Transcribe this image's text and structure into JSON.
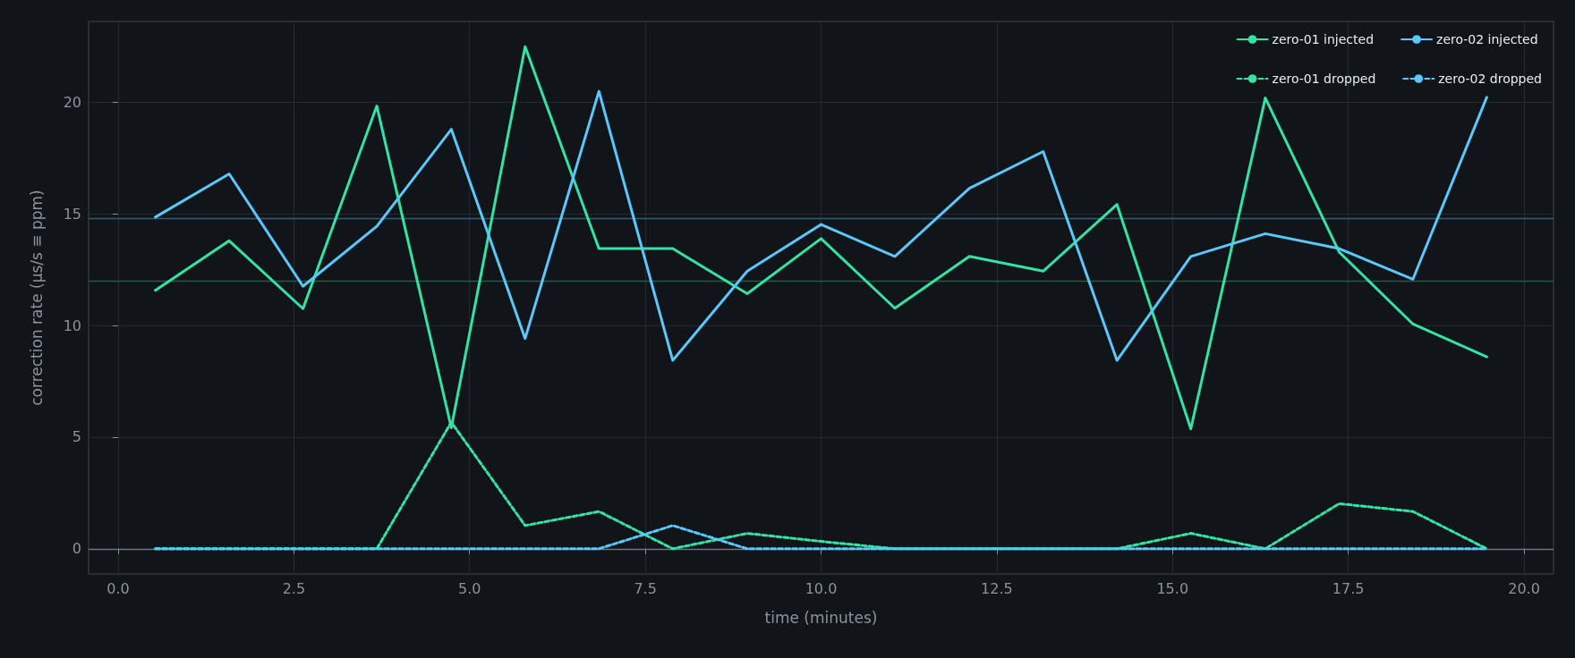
{
  "chart_data": {
    "type": "line",
    "xlabel": "time (minutes)",
    "ylabel": "correction rate (µs/s ≡ ppm)",
    "x": [
      0.53,
      1.58,
      2.63,
      3.68,
      4.74,
      5.79,
      6.84,
      7.89,
      8.95,
      10.0,
      11.05,
      12.11,
      13.16,
      14.21,
      15.26,
      16.32,
      17.37,
      18.42,
      19.47
    ],
    "series": [
      {
        "name": "zero-01 injected",
        "color": "#34e3a4",
        "line_style": "solid",
        "values": [
          11.58,
          13.8,
          10.76,
          19.84,
          5.42,
          22.5,
          13.45,
          13.45,
          11.43,
          13.9,
          10.78,
          13.1,
          12.44,
          15.43,
          5.37,
          20.2,
          13.3,
          10.07,
          8.6
        ]
      },
      {
        "name": "zero-01 dropped",
        "color": "#34e3a4",
        "line_style": "dashed",
        "values": [
          0,
          0,
          0,
          0,
          5.67,
          1.04,
          1.67,
          0,
          0.69,
          0.33,
          0,
          0,
          0,
          0,
          0.69,
          0,
          2.02,
          1.67,
          0
        ]
      },
      {
        "name": "zero-02 injected",
        "color": "#5ac8fa",
        "line_style": "solid",
        "values": [
          14.86,
          16.8,
          11.76,
          14.45,
          18.8,
          9.42,
          20.5,
          8.44,
          12.44,
          14.53,
          13.1,
          16.15,
          17.8,
          8.44,
          13.1,
          14.12,
          13.45,
          12.08,
          20.23
        ]
      },
      {
        "name": "zero-02 dropped",
        "color": "#5ac8fa",
        "line_style": "dashed",
        "values": [
          0,
          0,
          0,
          0,
          0,
          0,
          0,
          1.04,
          0,
          0,
          0,
          0,
          0,
          0,
          0,
          0,
          0,
          0,
          0
        ]
      }
    ],
    "ref_lines": [
      {
        "axis": "y",
        "value": 14.8,
        "color": "#2f5f78"
      },
      {
        "axis": "y",
        "value": 12,
        "color": "#225a4a"
      },
      {
        "axis": "y",
        "value": 0,
        "color": "#6e7681"
      }
    ],
    "xlim": [
      -0.42,
      20.42
    ],
    "ylim": [
      -1.13,
      23.63
    ],
    "xticks": [
      {
        "value": 0,
        "label": "0.0"
      },
      {
        "value": 2.5,
        "label": "2.5"
      },
      {
        "value": 5,
        "label": "5.0"
      },
      {
        "value": 7.5,
        "label": "7.5"
      },
      {
        "value": 10,
        "label": "10.0"
      },
      {
        "value": 12.5,
        "label": "12.5"
      },
      {
        "value": 15,
        "label": "15.0"
      },
      {
        "value": 17.5,
        "label": "17.5"
      },
      {
        "value": 20,
        "label": "20.0"
      }
    ],
    "yticks": [
      0,
      5,
      10,
      15,
      20
    ],
    "grid": true,
    "legend": "top right",
    "marker": "none"
  }
}
